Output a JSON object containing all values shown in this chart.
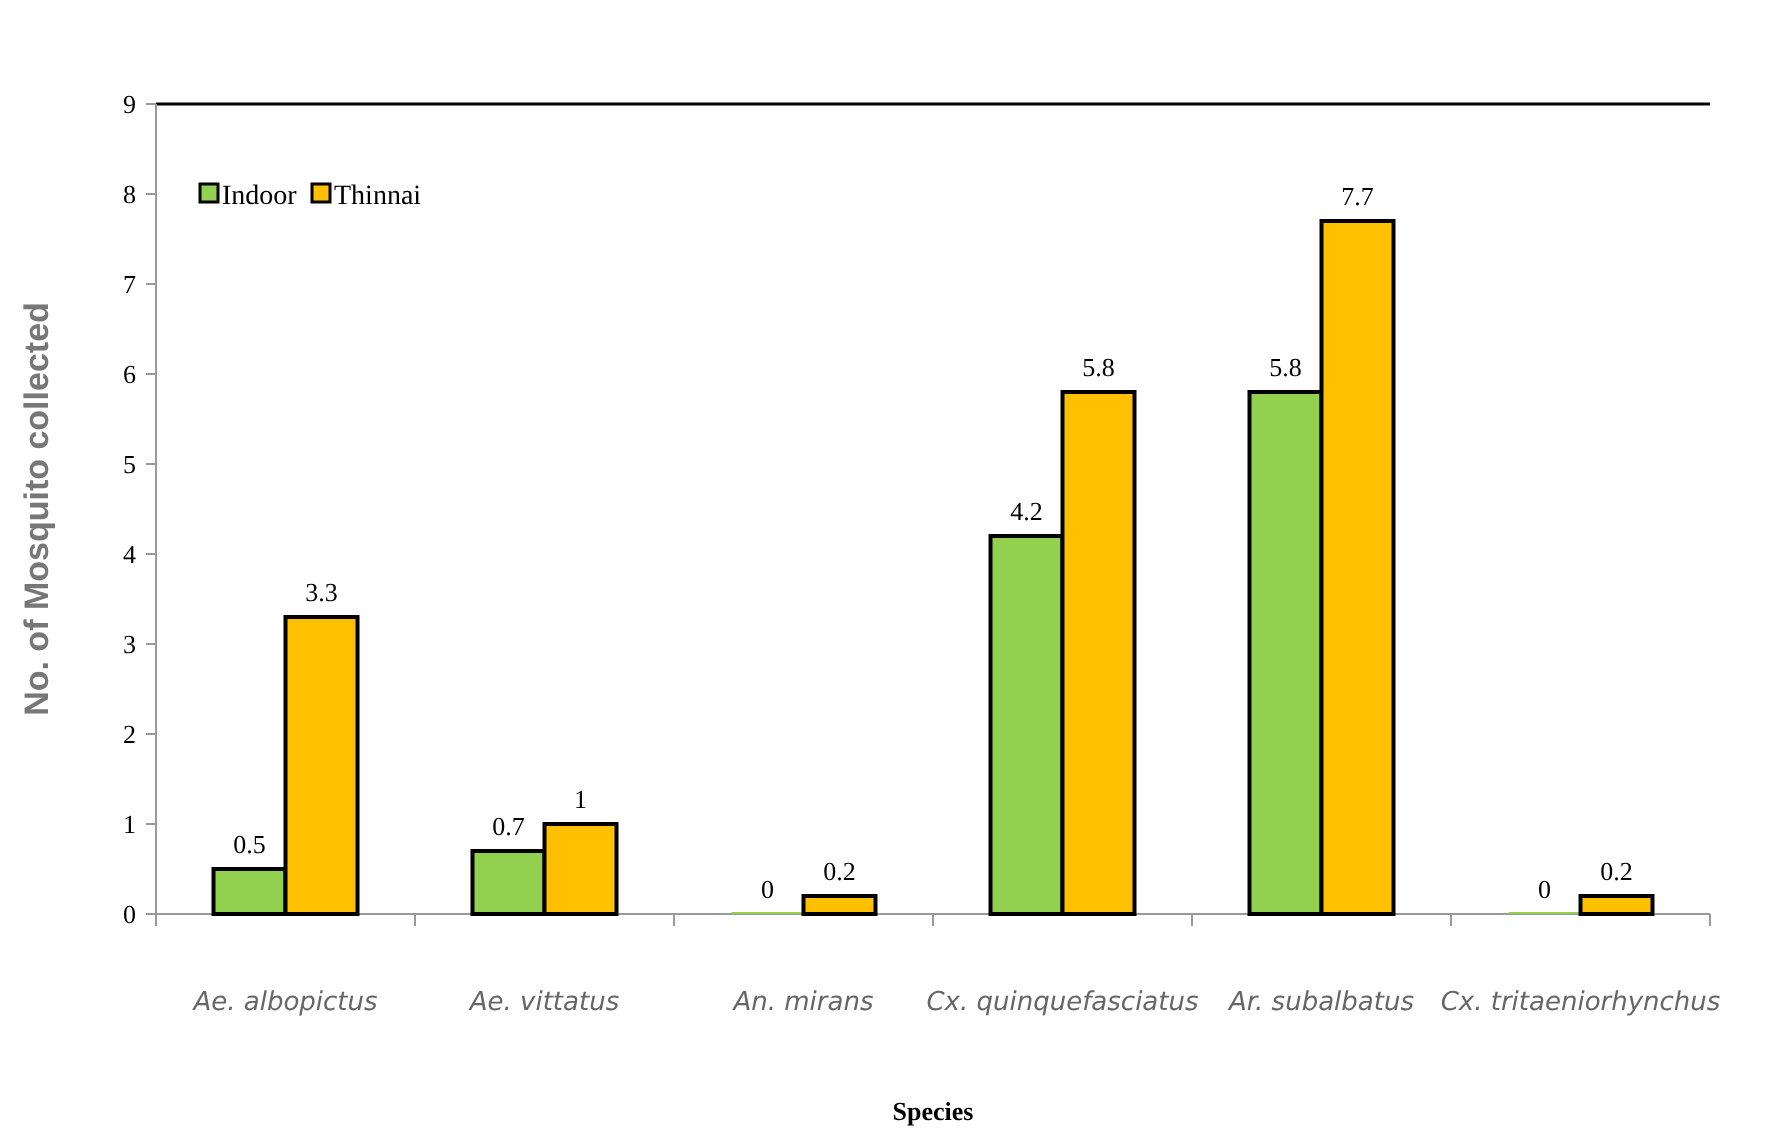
{
  "chart_data": {
    "type": "bar",
    "xlabel": "Species",
    "ylabel": "No. of Mosquito collected",
    "categories": [
      "Ae. albopictus",
      "Ae. vittatus",
      "An. mirans",
      "Cx. quinquefasciatus",
      "Ar. subalbatus",
      "Cx. tritaeniorhynchus"
    ],
    "series": [
      {
        "name": "Indoor",
        "color": "#92d050",
        "values": [
          0.5,
          0.7,
          0,
          4.2,
          5.8,
          0
        ]
      },
      {
        "name": "Thinnai",
        "color": "#ffc000",
        "values": [
          3.3,
          1,
          0.2,
          5.8,
          7.7,
          0.2
        ]
      }
    ],
    "ylim": [
      0,
      9
    ],
    "yticks": [
      0,
      1,
      2,
      3,
      4,
      5,
      6,
      7,
      8,
      9
    ],
    "data_labels": true,
    "legend": "top left",
    "grid": false
  }
}
